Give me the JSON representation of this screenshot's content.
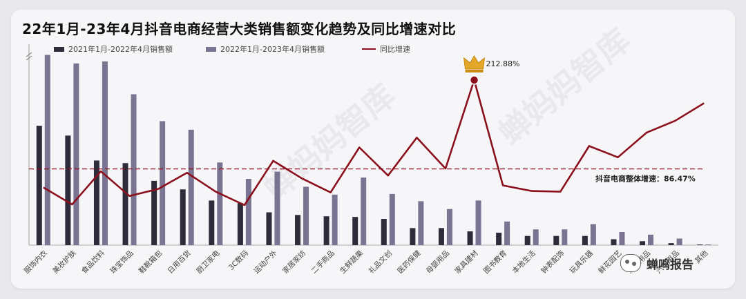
{
  "title": "22年1月-23年4月抖音电商经营大类销售额变化趋势及同比增速对比",
  "legend": {
    "series1": "2021年1月-2022年4月销售额",
    "series2": "2022年1月-2023年4月销售额",
    "line": "同比增速"
  },
  "watermark": "蝉妈妈智库",
  "brand": "蝉鸣报告",
  "crown_icon": "crown-icon",
  "colors": {
    "series1": "#2e2b3b",
    "series2": "#7a7391",
    "line": "#8b0f1c",
    "reference": "#8b0f1c"
  },
  "chart_data": {
    "type": "bar",
    "title": "22年1月-23年4月抖音电商经营大类销售额变化趋势及同比增速对比",
    "categories": [
      "服饰内衣",
      "美妆护肤",
      "食品饮料",
      "珠宝饰品",
      "鞋靴箱包",
      "日用百货",
      "厨卫家电",
      "3C数码",
      "运动户外",
      "家居家纺",
      "二手商品",
      "生鲜蔬果",
      "礼品文创",
      "医药保健",
      "母婴用品",
      "家具建材",
      "图书教育",
      "本地生活",
      "钟表配饰",
      "玩具乐器",
      "鲜花园艺",
      "宠物用品",
      "汽车用品",
      "其他"
    ],
    "series": [
      {
        "name": "2021年1月-2022年4月销售额",
        "values": [
          182,
          167,
          129,
          125,
          98,
          85,
          68,
          64,
          50,
          46,
          44,
          43,
          40,
          26,
          26,
          21,
          19,
          14,
          14,
          14,
          9,
          6,
          3,
          1
        ]
      },
      {
        "name": "2022年1月-2023年4月销售额",
        "values": [
          290,
          277,
          280,
          230,
          189,
          176,
          126,
          101,
          112,
          89,
          77,
          103,
          78,
          67,
          55,
          68,
          36,
          24,
          24,
          32,
          20,
          16,
          10,
          1
        ]
      },
      {
        "name": "同比增速",
        "type": "line",
        "axis": "right",
        "values": [
          60,
          36,
          83,
          48,
          58,
          81,
          54,
          35,
          98,
          73,
          53,
          117,
          77,
          131,
          87,
          212.88,
          63,
          55,
          54,
          119,
          103,
          138,
          155,
          180
        ]
      }
    ],
    "y_axis_break": true,
    "reference_line": {
      "label": "抖音电商整体增速：86.47%",
      "value": 86.47
    },
    "annotations": [
      {
        "category": "家具建材",
        "label": "212.88%"
      }
    ],
    "ylim": [
      0,
      300
    ],
    "ylim_right": [
      -22,
      258
    ],
    "legend_position": "top-left",
    "grid": false
  }
}
